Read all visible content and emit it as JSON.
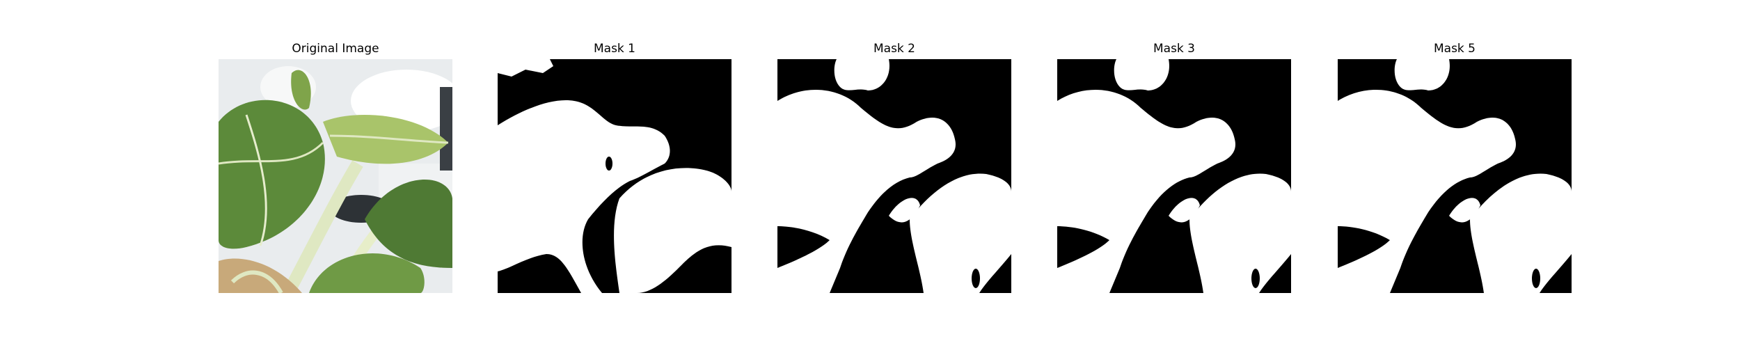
{
  "panels": [
    {
      "title": "Original Image",
      "kind": "photo"
    },
    {
      "title": "Mask 1",
      "kind": "mask"
    },
    {
      "title": "Mask 2",
      "kind": "mask"
    },
    {
      "title": "Mask 3",
      "kind": "mask"
    },
    {
      "title": "Mask 5",
      "kind": "mask"
    }
  ],
  "colors": {
    "mask_foreground": "#ffffff",
    "mask_background": "#000000",
    "leaf_dark": "#4f7a34",
    "leaf_mid": "#6f9a45",
    "leaf_light": "#a9c46a",
    "stem": "#dfe8c2",
    "backdrop": "#e9ecee"
  }
}
